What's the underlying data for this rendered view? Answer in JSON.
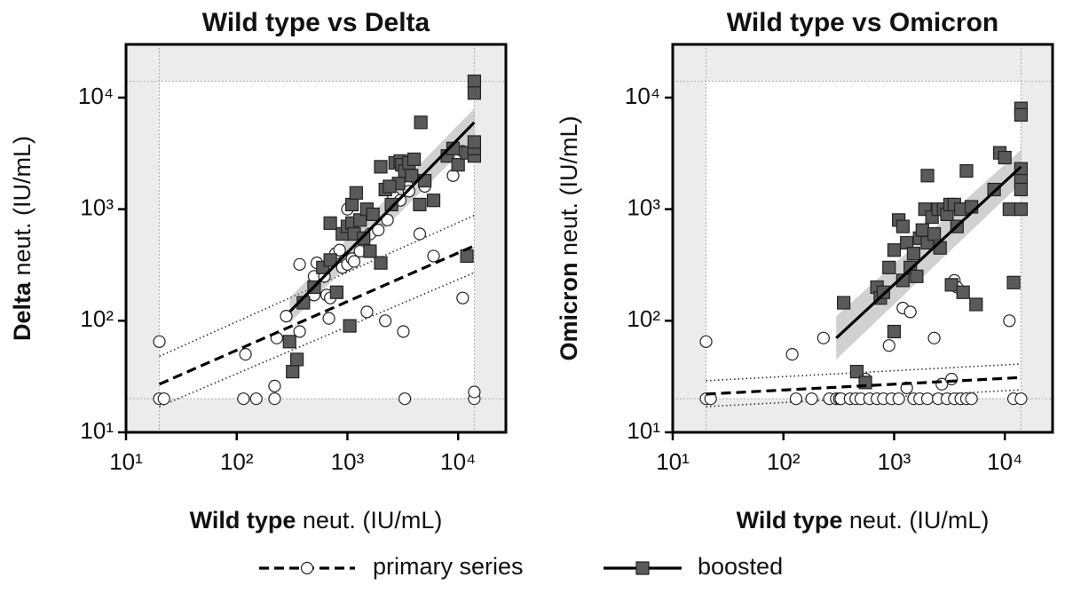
{
  "chart_data": [
    {
      "type": "scatter",
      "title": "Wild type vs Delta",
      "xlabel": {
        "bold": "Wild type",
        "text": "neut. (IU/mL)"
      },
      "ylabel": {
        "bold": "Delta",
        "text": "neut. (IU/mL)"
      },
      "log_x": true,
      "log_y": true,
      "xlim": [
        10,
        27000
      ],
      "ylim": [
        10,
        30000
      ],
      "xticks": [
        {
          "value": 10,
          "label": "10¹"
        },
        {
          "value": 100,
          "label": "10²"
        },
        {
          "value": 1000,
          "label": "10³"
        },
        {
          "value": 10000,
          "label": "10⁴"
        }
      ],
      "yticks": [
        {
          "value": 10,
          "label": "10¹"
        },
        {
          "value": 100,
          "label": "10²"
        },
        {
          "value": 1000,
          "label": "10³"
        },
        {
          "value": 10000,
          "label": "10⁴"
        }
      ],
      "lod": [
        20,
        14000
      ],
      "series": [
        {
          "name": "primary series",
          "color": "#ffffff",
          "marker": "circle",
          "line": "dashed",
          "x": [
            20,
            20,
            22,
            115,
            150,
            220,
            220,
            230,
            120,
            280,
            350,
            370,
            370,
            500,
            500,
            530,
            620,
            650,
            700,
            700,
            680,
            780,
            850,
            900,
            1000,
            1000,
            1100,
            1150,
            1300,
            1500,
            1600,
            1900,
            2200,
            2300,
            2600,
            3000,
            3200,
            3300,
            3500,
            3600,
            4500,
            5000,
            6000,
            9000,
            11000,
            11000,
            14000,
            14000
          ],
          "values": [
            65,
            20,
            20,
            20,
            20,
            20,
            26,
            70,
            50,
            110,
            45,
            80,
            320,
            170,
            250,
            330,
            250,
            170,
            160,
            330,
            105,
            400,
            430,
            300,
            1000,
            320,
            360,
            340,
            420,
            120,
            600,
            650,
            100,
            800,
            1300,
            1200,
            80,
            20,
            1600,
            1450,
            600,
            1600,
            380,
            2000,
            3300,
            160,
            20,
            23
          ],
          "fit": {
            "x": [
              20,
              14000
            ],
            "y": [
              27,
              470
            ],
            "lower": [
              17,
              270
            ],
            "upper": [
              48,
              880
            ],
            "ci": "dotted"
          }
        },
        {
          "name": "boosted",
          "color": "#5a5a5a",
          "marker": "square",
          "line": "solid",
          "x": [
            300,
            320,
            350,
            400,
            500,
            600,
            700,
            800,
            900,
            1000,
            1050,
            1100,
            1150,
            1300,
            1400,
            1500,
            1600,
            1700,
            2000,
            2000,
            2200,
            2500,
            2700,
            2900,
            3000,
            3100,
            3300,
            3600,
            3800,
            4000,
            4500,
            4600,
            5000,
            6000,
            8000,
            9000,
            10000,
            12000,
            12000,
            14000,
            14000,
            14000,
            14000,
            14000,
            1100,
            1200,
            2400,
            700
          ],
          "values": [
            65,
            35,
            45,
            145,
            200,
            300,
            350,
            180,
            600,
            700,
            90,
            750,
            600,
            800,
            550,
            1000,
            420,
            900,
            2400,
            330,
            1500,
            1100,
            2600,
            1700,
            2700,
            2500,
            2200,
            2600,
            2000,
            2800,
            1100,
            6000,
            1800,
            1200,
            3000,
            3500,
            2500,
            3200,
            380,
            14000,
            11000,
            3000,
            3500,
            4000,
            1100,
            1400,
            1600,
            750
          ],
          "fit": {
            "x": [
              300,
              14000
            ],
            "y": [
              120,
              6000
            ],
            "lower": [
              95,
              4300
            ],
            "upper": [
              160,
              8000
            ],
            "ci": "band"
          }
        }
      ]
    },
    {
      "type": "scatter",
      "title": "Wild type vs Omicron",
      "xlabel": {
        "bold": "Wild type",
        "text": "neut. (IU/mL)"
      },
      "ylabel": {
        "bold": "Omicron",
        "text": "neut. (IU/mL)"
      },
      "log_x": true,
      "log_y": true,
      "xlim": [
        10,
        27000
      ],
      "ylim": [
        10,
        30000
      ],
      "xticks": [
        {
          "value": 10,
          "label": "10¹"
        },
        {
          "value": 100,
          "label": "10²"
        },
        {
          "value": 1000,
          "label": "10³"
        },
        {
          "value": 10000,
          "label": "10⁴"
        }
      ],
      "yticks": [
        {
          "value": 10,
          "label": "10¹"
        },
        {
          "value": 100,
          "label": "10²"
        },
        {
          "value": 1000,
          "label": "10³"
        },
        {
          "value": 10000,
          "label": "10⁴"
        }
      ],
      "lod": [
        20,
        14000
      ],
      "series": [
        {
          "name": "primary series",
          "color": "#ffffff",
          "marker": "circle",
          "line": "dashed",
          "x": [
            20,
            20,
            22,
            120,
            130,
            180,
            230,
            260,
            300,
            320,
            330,
            400,
            450,
            500,
            550,
            600,
            700,
            800,
            900,
            950,
            1000,
            1100,
            1200,
            1300,
            1400,
            1500,
            1700,
            2000,
            2300,
            2500,
            2700,
            3000,
            3300,
            3500,
            3700,
            3500,
            4000,
            4500,
            5000,
            11000,
            12000,
            14000
          ],
          "values": [
            65,
            20,
            20,
            50,
            20,
            20,
            70,
            20,
            20,
            20,
            20,
            20,
            20,
            20,
            30,
            20,
            20,
            20,
            60,
            20,
            80,
            20,
            130,
            25,
            120,
            20,
            20,
            20,
            70,
            20,
            27,
            20,
            30,
            230,
            200,
            20,
            20,
            20,
            20,
            100,
            20,
            20
          ],
          "fit": {
            "x": [
              20,
              14000
            ],
            "y": [
              22,
              31
            ],
            "lower": [
              17,
              24
            ],
            "upper": [
              29,
              41
            ],
            "ci": "dotted"
          }
        },
        {
          "name": "boosted",
          "color": "#5a5a5a",
          "marker": "square",
          "line": "solid",
          "x": [
            350,
            460,
            550,
            700,
            750,
            800,
            900,
            1000,
            1000,
            1100,
            1200,
            1200,
            1300,
            1400,
            1500,
            1600,
            1700,
            1800,
            1900,
            2000,
            2000,
            2200,
            2300,
            2500,
            2600,
            2800,
            3000,
            3200,
            3300,
            3500,
            3700,
            4000,
            4200,
            4500,
            5000,
            5500,
            8000,
            9000,
            10000,
            11000,
            12000,
            14000,
            14000,
            14000,
            14000,
            14000,
            14000
          ],
          "values": [
            145,
            35,
            28,
            200,
            160,
            180,
            300,
            80,
            430,
            800,
            700,
            230,
            500,
            300,
            400,
            250,
            550,
            650,
            1000,
            2000,
            500,
            850,
            600,
            1000,
            450,
            1000,
            900,
            1100,
            210,
            1100,
            700,
            1000,
            180,
            2200,
            1050,
            140,
            1500,
            3200,
            2900,
            1000,
            220,
            8000,
            7000,
            2300,
            1800,
            1500,
            1000
          ],
          "fit": {
            "x": [
              300,
              14000
            ],
            "y": [
              70,
              2400
            ],
            "lower": [
              45,
              1700
            ],
            "upper": [
              110,
              3400
            ],
            "ci": "band"
          }
        }
      ]
    }
  ]
}
